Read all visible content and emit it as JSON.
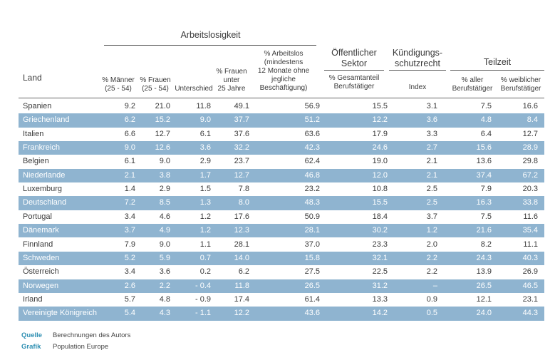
{
  "headers": {
    "group_arbeitslosigkeit": "Arbeitslosigkeit",
    "group_oeffentlich": [
      "Öffentlicher",
      "Sektor"
    ],
    "group_kuendigung": [
      "Kündigungs-",
      "schutzrecht"
    ],
    "group_teilzeit": "Teilzeit",
    "land": "Land",
    "maenner": [
      "% Männer",
      "(25 - 54)"
    ],
    "frauen": [
      "% Frauen",
      "(25 - 54)"
    ],
    "unterschied": "Unterschied",
    "frauen_unter25": [
      "% Frauen",
      "unter",
      "25 Jahre"
    ],
    "arbeitslos_lang": [
      "% Arbeitslos",
      "(mindestens",
      "12 Monate ohne",
      "jegliche",
      "Beschäftigung)"
    ],
    "gesamtanteil": [
      "% Gesamtanteil",
      "Berufstätiger"
    ],
    "index": "Index",
    "aller": [
      "% aller",
      "Berufstätiger"
    ],
    "weiblicher": [
      "% weiblicher",
      "Berufstätiger"
    ]
  },
  "rows": [
    {
      "land": "Spanien",
      "vals": [
        "9.2",
        "21.0",
        "11.8",
        "49.1",
        "56.9",
        "15.5",
        "3.1",
        "7.5",
        "16.6"
      ]
    },
    {
      "land": "Griechenland",
      "vals": [
        "6.2",
        "15.2",
        "9.0",
        "37.7",
        "51.2",
        "12.2",
        "3.6",
        "4.8",
        "8.4"
      ]
    },
    {
      "land": "Italien",
      "vals": [
        "6.6",
        "12.7",
        "6.1",
        "37.6",
        "63.6",
        "17.9",
        "3.3",
        "6.4",
        "12.7"
      ]
    },
    {
      "land": "Frankreich",
      "vals": [
        "9.0",
        "12.6",
        "3.6",
        "32.2",
        "42.3",
        "24.6",
        "2.7",
        "15.6",
        "28.9"
      ]
    },
    {
      "land": "Belgien",
      "vals": [
        "6.1",
        "9.0",
        "2.9",
        "23.7",
        "62.4",
        "19.0",
        "2.1",
        "13.6",
        "29.8"
      ]
    },
    {
      "land": "Niederlande",
      "vals": [
        "2.1",
        "3.8",
        "1.7",
        "12.7",
        "46.8",
        "12.0",
        "2.1",
        "37.4",
        "67.2"
      ]
    },
    {
      "land": "Luxemburg",
      "vals": [
        "1.4",
        "2.9",
        "1.5",
        "7.8",
        "23.2",
        "10.8",
        "2.5",
        "7.9",
        "20.3"
      ]
    },
    {
      "land": "Deutschland",
      "vals": [
        "7.2",
        "8.5",
        "1.3",
        "8.0",
        "48.3",
        "15.5",
        "2.5",
        "16.3",
        "33.8"
      ]
    },
    {
      "land": "Portugal",
      "vals": [
        "3.4",
        "4.6",
        "1.2",
        "17.6",
        "50.9",
        "18.4",
        "3.7",
        "7.5",
        "11.6"
      ]
    },
    {
      "land": "Dänemark",
      "vals": [
        "3.7",
        "4.9",
        "1.2",
        "12.3",
        "28.1",
        "30.2",
        "1.2",
        "21.6",
        "35.4"
      ]
    },
    {
      "land": "Finnland",
      "vals": [
        "7.9",
        "9.0",
        "1.1",
        "28.1",
        "37.0",
        "23.3",
        "2.0",
        "8.2",
        "11.1"
      ]
    },
    {
      "land": "Schweden",
      "vals": [
        "5.2",
        "5.9",
        "0.7",
        "14.0",
        "15.8",
        "32.1",
        "2.2",
        "24.3",
        "40.3"
      ]
    },
    {
      "land": "Österreich",
      "vals": [
        "3.4",
        "3.6",
        "0.2",
        "6.2",
        "27.5",
        "22.5",
        "2.2",
        "13.9",
        "26.9"
      ]
    },
    {
      "land": "Norwegen",
      "vals": [
        "2.6",
        "2.2",
        "- 0.4",
        "11.8",
        "26.5",
        "31.2",
        "–",
        "26.5",
        "46.5"
      ]
    },
    {
      "land": "Irland",
      "vals": [
        "5.7",
        "4.8",
        "- 0.9",
        "17.4",
        "61.4",
        "13.3",
        "0.9",
        "12.1",
        "23.1"
      ]
    },
    {
      "land": "Vereinigte Königreich",
      "vals": [
        "5.4",
        "4.3",
        "- 1.1",
        "12.2",
        "43.6",
        "14.2",
        "0.5",
        "24.0",
        "44.3"
      ]
    }
  ],
  "footer": {
    "quelle_label": "Quelle",
    "quelle_value": "Berechnungen des Autors",
    "grafik_label": "Grafik",
    "grafik_value": "Population Europe"
  },
  "colors": {
    "band": "#8fb4d0",
    "accent": "#2e8fb2"
  }
}
